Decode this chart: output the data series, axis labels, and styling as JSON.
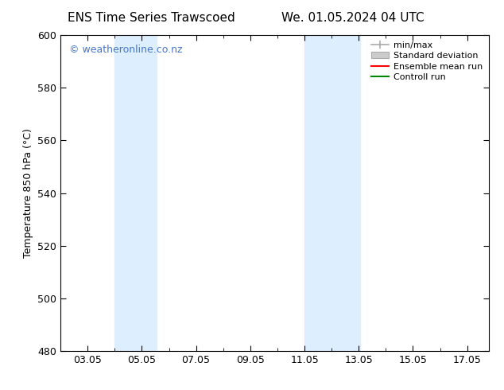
{
  "title_left": "ENS Time Series Trawscoed",
  "title_right": "We. 01.05.2024 04 UTC",
  "ylabel": "Temperature 850 hPa (°C)",
  "ylim": [
    480,
    600
  ],
  "yticks": [
    480,
    500,
    520,
    540,
    560,
    580,
    600
  ],
  "xtick_labels": [
    "03.05",
    "05.05",
    "07.05",
    "09.05",
    "11.05",
    "13.05",
    "15.05",
    "17.05"
  ],
  "xtick_positions": [
    3,
    5,
    7,
    9,
    11,
    13,
    15,
    17
  ],
  "xlim": [
    2.0,
    17.8
  ],
  "shaded_bands": [
    {
      "x_start": 4.0,
      "x_end": 5.55,
      "color": "#ddeeff"
    },
    {
      "x_start": 11.0,
      "x_end": 13.05,
      "color": "#ddeeff"
    }
  ],
  "watermark": "© weatheronline.co.nz",
  "watermark_color": "#4477cc",
  "background_color": "#ffffff",
  "legend_items": [
    {
      "label": "min/max",
      "color": "#aaaaaa",
      "style": "line"
    },
    {
      "label": "Standard deviation",
      "color": "#cccccc",
      "style": "bar"
    },
    {
      "label": "Ensemble mean run",
      "color": "#ff0000",
      "style": "line"
    },
    {
      "label": "Controll run",
      "color": "#008800",
      "style": "line"
    }
  ],
  "title_fontsize": 11,
  "tick_fontsize": 9,
  "ylabel_fontsize": 9,
  "watermark_fontsize": 9,
  "legend_fontsize": 8
}
